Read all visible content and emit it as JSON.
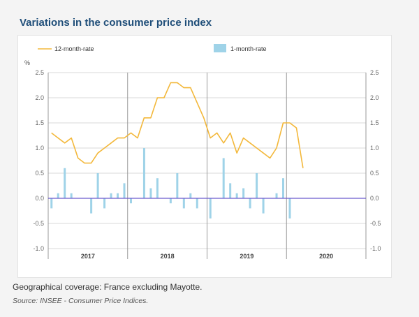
{
  "title": "Variations in the consumer price index",
  "footnote": "Geographical coverage: France excluding Mayotte.",
  "source": "Source: INSEE - Consumer Price Indices.",
  "colors": {
    "line": "#f3b83b",
    "bar": "#9fd3e8",
    "zero": "#6a5acd",
    "title": "#1f4e79"
  },
  "chart_data": {
    "type": "bar+line",
    "ylabel": "%",
    "ylim": [
      -1.0,
      2.5
    ],
    "yticks": [
      "2.5",
      "2.0",
      "1.5",
      "1.0",
      "0.5",
      "0.0",
      "-0.5",
      "-1.0"
    ],
    "ytick_values": [
      2.5,
      2.0,
      1.5,
      1.0,
      0.5,
      0.0,
      -0.5,
      -1.0
    ],
    "years": [
      "2017",
      "2018",
      "2019",
      "2020"
    ],
    "grid": true,
    "legend_position": "top",
    "months": [
      "2017-01",
      "2017-02",
      "2017-03",
      "2017-04",
      "2017-05",
      "2017-06",
      "2017-07",
      "2017-08",
      "2017-09",
      "2017-10",
      "2017-11",
      "2017-12",
      "2018-01",
      "2018-02",
      "2018-03",
      "2018-04",
      "2018-05",
      "2018-06",
      "2018-07",
      "2018-08",
      "2018-09",
      "2018-10",
      "2018-11",
      "2018-12",
      "2019-01",
      "2019-02",
      "2019-03",
      "2019-04",
      "2019-05",
      "2019-06",
      "2019-07",
      "2019-08",
      "2019-09",
      "2019-10",
      "2019-11",
      "2019-12",
      "2020-01",
      "2020-02",
      "2020-03"
    ],
    "series": [
      {
        "name": "12-month-rate",
        "kind": "line",
        "values": [
          1.3,
          1.2,
          1.1,
          1.2,
          0.8,
          0.7,
          0.7,
          0.9,
          1.0,
          1.1,
          1.2,
          1.2,
          1.3,
          1.2,
          1.6,
          1.6,
          2.0,
          2.0,
          2.3,
          2.3,
          2.2,
          2.2,
          1.9,
          1.6,
          1.2,
          1.3,
          1.1,
          1.3,
          0.9,
          1.2,
          1.1,
          1.0,
          0.9,
          0.8,
          1.0,
          1.5,
          1.5,
          1.4,
          0.6
        ]
      },
      {
        "name": "1-month-rate",
        "kind": "bar",
        "values": [
          -0.2,
          0.1,
          0.6,
          0.1,
          0.0,
          0.0,
          -0.3,
          0.5,
          -0.2,
          0.1,
          0.1,
          0.3,
          -0.1,
          0.0,
          1.0,
          0.2,
          0.4,
          0.0,
          -0.1,
          0.5,
          -0.2,
          0.1,
          -0.2,
          0.0,
          -0.4,
          0.0,
          0.8,
          0.3,
          0.1,
          0.2,
          -0.2,
          0.5,
          -0.3,
          0.0,
          0.1,
          0.4,
          -0.4,
          0.0,
          0.0
        ]
      }
    ]
  }
}
